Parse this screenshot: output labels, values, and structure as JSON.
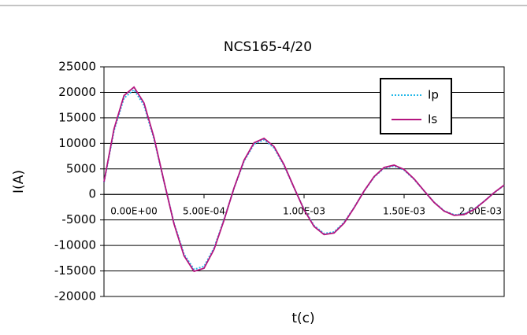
{
  "chart_data": {
    "type": "line",
    "title": "NCS165-4/20",
    "x_label": "t(c)",
    "y_label": "I(A)",
    "x": [
      0,
      5e-05,
      0.0001,
      0.00015,
      0.0002,
      0.00025,
      0.0003,
      0.00035,
      0.0004,
      0.00045,
      0.0005,
      0.00055,
      0.0006,
      0.00065,
      0.0007,
      0.00075,
      0.0008,
      0.00085,
      0.0009,
      0.00095,
      0.001,
      0.00105,
      0.0011,
      0.00115,
      0.0012,
      0.00125,
      0.0013,
      0.00135,
      0.0014,
      0.00145,
      0.0015,
      0.00155,
      0.0016,
      0.00165,
      0.0017,
      0.00175,
      0.0018,
      0.00185,
      0.0019,
      0.00195,
      0.002
    ],
    "series": [
      {
        "name": "Ip",
        "color": "#22b8e8",
        "dash": "dotted",
        "values": [
          2380,
          12490,
          18880,
          20510,
          17470,
          10870,
          2500,
          -5630,
          -11720,
          -14690,
          -14120,
          -10510,
          -4920,
          1240,
          6520,
          9860,
          10710,
          9120,
          5670,
          1300,
          -2940,
          -6120,
          -7670,
          -7370,
          -5490,
          -2570,
          650,
          3410,
          5150,
          5590,
          4760,
          2960,
          680,
          -1540,
          -3200,
          -4000,
          -3850,
          -2860,
          -1340,
          340,
          1780
        ]
      },
      {
        "name": "Is",
        "color": "#b4157f",
        "dash": "solid",
        "values": [
          2440,
          12810,
          19370,
          21040,
          17920,
          11150,
          2560,
          -5780,
          -12020,
          -15070,
          -14480,
          -10780,
          -5050,
          1270,
          6690,
          10110,
          10990,
          9360,
          5820,
          1330,
          -3020,
          -6280,
          -7870,
          -7560,
          -5630,
          -2630,
          670,
          3490,
          5280,
          5740,
          4880,
          3040,
          700,
          -1580,
          -3280,
          -4110,
          -3950,
          -2940,
          -1370,
          350,
          1830
        ]
      }
    ],
    "xlim": [
      0,
      0.002
    ],
    "xticks": [
      {
        "value": 0,
        "label": "0.00E+00"
      },
      {
        "value": 0.0005,
        "label": "5.00E-04"
      },
      {
        "value": 0.001,
        "label": "1.00E-03"
      },
      {
        "value": 0.0015,
        "label": "1.50E-03"
      },
      {
        "value": 0.002,
        "label": "2.00E-03"
      }
    ],
    "ylim": [
      -20000,
      25000
    ],
    "yticks": [
      -20000,
      -15000,
      -10000,
      -5000,
      0,
      5000,
      10000,
      15000,
      20000,
      25000
    ],
    "grid": true,
    "legend": "upper right"
  }
}
